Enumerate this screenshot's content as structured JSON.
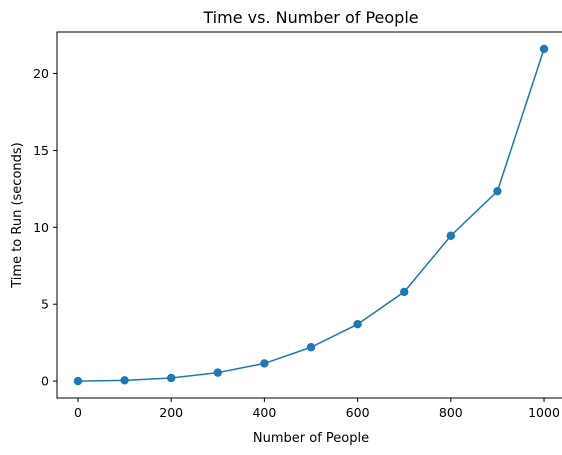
{
  "chart_data": {
    "type": "line",
    "title": "Time vs. Number of People",
    "xlabel": "Number of People",
    "ylabel": "Time to Run (seconds)",
    "x": [
      0,
      100,
      200,
      300,
      400,
      500,
      600,
      700,
      800,
      900,
      1000
    ],
    "series": [
      {
        "values": [
          0.0,
          0.05,
          0.2,
          0.55,
          1.15,
          2.2,
          3.7,
          5.8,
          9.45,
          12.35,
          21.6
        ],
        "color": "#1f77b4",
        "marker": "circle"
      }
    ],
    "xlim": [
      -45,
      1045
    ],
    "ylim": [
      -1.1,
      22.7
    ],
    "xticks": [
      0,
      200,
      400,
      600,
      800,
      1000
    ],
    "xtick_labels": [
      "0",
      "200",
      "400",
      "600",
      "800",
      "1000"
    ],
    "yticks": [
      0,
      5,
      10,
      15,
      20
    ],
    "ytick_labels": [
      "0",
      "5",
      "10",
      "15",
      "20"
    ],
    "grid": false,
    "legend": false
  }
}
